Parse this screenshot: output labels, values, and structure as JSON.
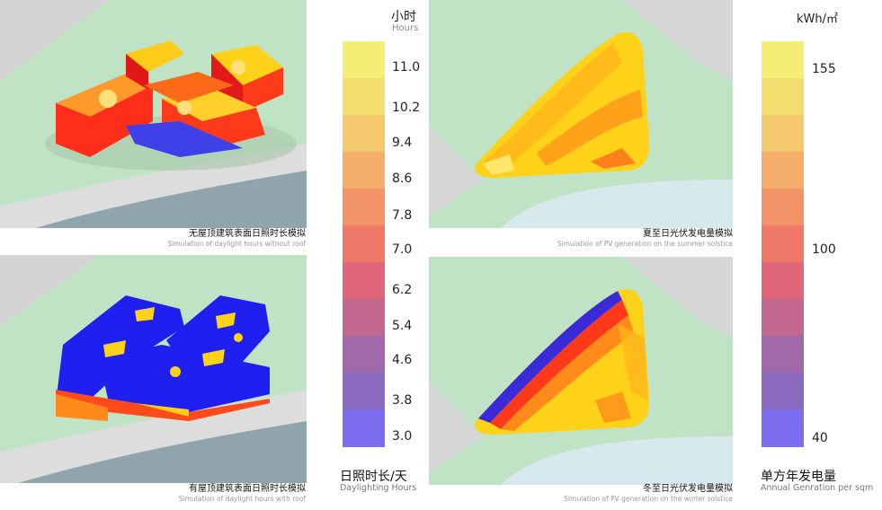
{
  "panels": {
    "p1": {
      "cn": "无屋顶建筑表面日照时长模拟",
      "en": "Simulation of daylight hours without roof"
    },
    "p2": {
      "cn": "有屋顶建筑表面日照时长模拟",
      "en": "Simulation of daylight hours with roof"
    },
    "p3": {
      "cn": "夏至日光伏发电量模拟",
      "en": "Simulation of PV generation on the summer solstice"
    },
    "p4": {
      "cn": "冬至日光伏发电量模拟",
      "en": "Simulation of PV generation on the winter solstice"
    }
  },
  "legend_hours": {
    "unit_cn": "小时",
    "unit_en": "Hours",
    "title_cn": "日照时长/天",
    "title_en": "Daylighting Hours",
    "ticks": [
      "11.0",
      "10.2",
      "9.4",
      "8.6",
      "7.8",
      "7.0",
      "6.2",
      "5.4",
      "4.6",
      "3.8",
      "3.0"
    ],
    "colors": [
      "#f4ee74",
      "#f3dd6e",
      "#f4c86d",
      "#f4ae6a",
      "#f39468",
      "#f07868",
      "#e0677a",
      "#c2688f",
      "#a26aa8",
      "#8a6bc0",
      "#7b6cf0"
    ]
  },
  "legend_pv": {
    "unit": "kWh/㎡",
    "title_cn": "单方年发电量",
    "title_en": "Annual Genration per sqm",
    "ticks": [
      "155",
      "100",
      "40"
    ],
    "colors": [
      "#f4ee74",
      "#f3dd6e",
      "#f4c86d",
      "#f4ae6a",
      "#f39468",
      "#f07868",
      "#e0677a",
      "#c2688f",
      "#a26aa8",
      "#8a6bc0",
      "#7b6cf0"
    ]
  }
}
